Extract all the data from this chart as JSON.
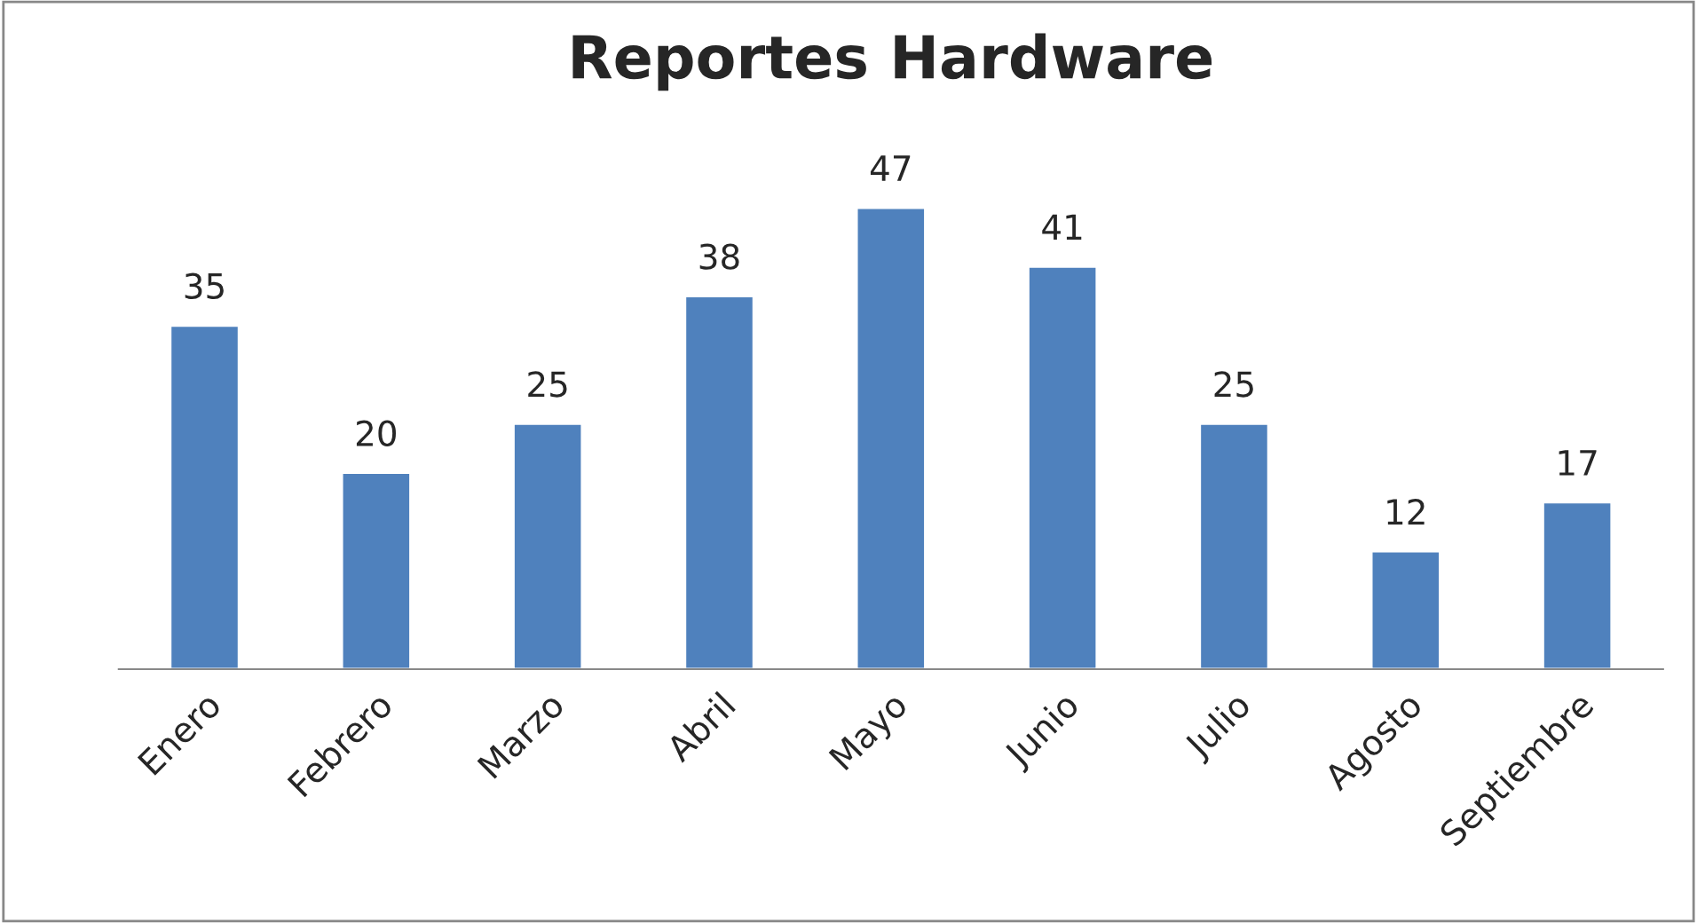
{
  "chart_data": {
    "type": "bar",
    "title": "Reportes Hardware",
    "categories": [
      "Enero",
      "Febrero",
      "Marzo",
      "Abril",
      "Mayo",
      "Junio",
      "Julio",
      "Agosto",
      "Septiembre"
    ],
    "values": [
      35,
      20,
      25,
      38,
      47,
      41,
      25,
      12,
      17
    ],
    "color": "#4f81bd",
    "data_labels": true,
    "tick_labels": "x",
    "grid": false,
    "legend": false
  }
}
